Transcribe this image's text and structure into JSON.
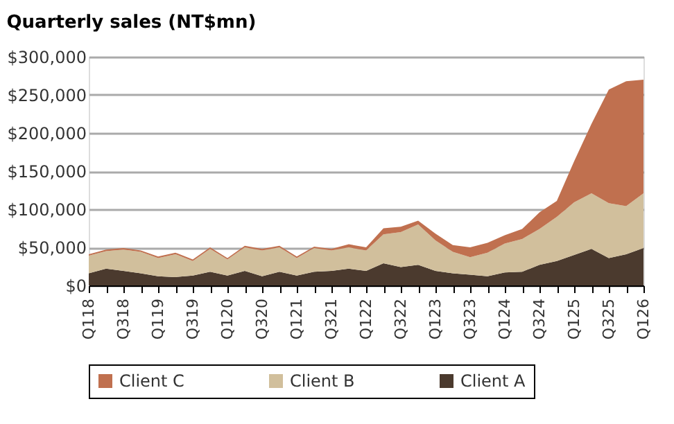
{
  "chart_data": {
    "type": "area",
    "title": "Quarterly sales (NT$mn)",
    "categories": [
      "Q118",
      null,
      "Q318",
      null,
      "Q119",
      null,
      "Q319",
      null,
      "Q120",
      null,
      "Q320",
      null,
      "Q121",
      null,
      "Q321",
      null,
      "Q122",
      null,
      "Q322",
      null,
      "Q123",
      null,
      "Q323",
      null,
      "Q124",
      null,
      "Q324",
      null,
      "Q125",
      null,
      "Q325",
      null,
      "Q126"
    ],
    "stacked": true,
    "series": [
      {
        "name": "Client A",
        "color": "#4b3a2e",
        "values": [
          16000,
          22000,
          19000,
          16000,
          12000,
          11000,
          13000,
          18000,
          13000,
          19000,
          12000,
          18000,
          13000,
          18000,
          19000,
          22000,
          19000,
          29000,
          24000,
          27000,
          19000,
          16000,
          14000,
          12000,
          17000,
          18000,
          27000,
          32000,
          40000,
          48000,
          36000,
          41000,
          49000
        ]
      },
      {
        "name": "Client B",
        "color": "#d1bf9c",
        "values": [
          23000,
          23000,
          28000,
          28000,
          24000,
          30000,
          19000,
          30000,
          21000,
          31000,
          34000,
          32000,
          23000,
          31000,
          27000,
          28000,
          27000,
          38000,
          46000,
          53000,
          40000,
          28000,
          23000,
          31000,
          38000,
          43000,
          47000,
          58000,
          69000,
          73000,
          72000,
          63000,
          72000
        ]
      },
      {
        "name": "Client C",
        "color": "#c0704f",
        "values": [
          2000,
          2000,
          2000,
          2000,
          2000,
          2000,
          2000,
          2000,
          2000,
          2000,
          2000,
          2000,
          2000,
          2000,
          2000,
          4000,
          4000,
          8000,
          7000,
          5000,
          9000,
          9000,
          13000,
          13000,
          11000,
          13000,
          22000,
          21000,
          54000,
          91000,
          149000,
          164000,
          149000
        ]
      }
    ],
    "ylim": [
      0,
      300000
    ],
    "yticks": [
      {
        "value": 0,
        "label": "$0"
      },
      {
        "value": 50000,
        "label": "$50,000"
      },
      {
        "value": 100000,
        "label": "$100,000"
      },
      {
        "value": 150000,
        "label": "$150,000"
      },
      {
        "value": 200000,
        "label": "$200,000"
      },
      {
        "value": 250000,
        "label": "$250,000"
      },
      {
        "value": 300000,
        "label": "$300,000"
      }
    ],
    "grid": "y",
    "legend": "bottom"
  }
}
